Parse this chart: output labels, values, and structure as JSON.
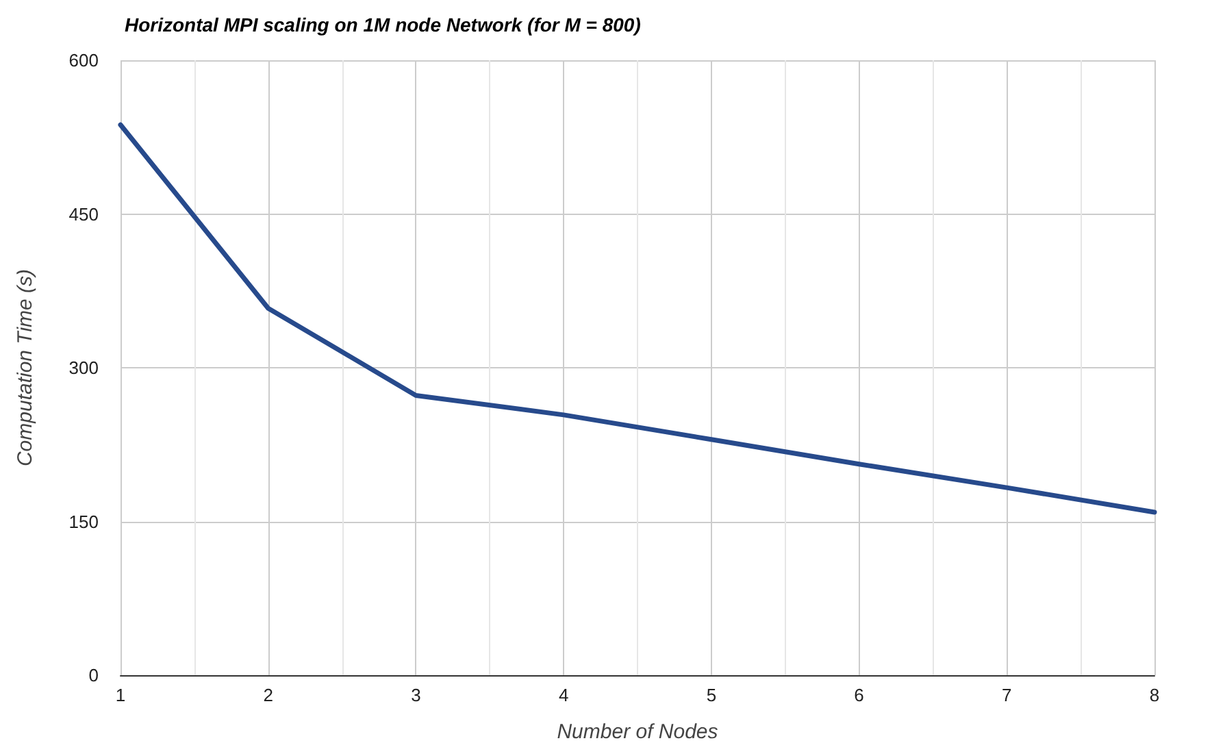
{
  "chart_data": {
    "type": "line",
    "title": "Horizontal MPI scaling on 1M node Network (for M = 800)",
    "xlabel": "Number of Nodes",
    "ylabel": "Computation Time (s)",
    "x": [
      1,
      2,
      3,
      4,
      5,
      6,
      7,
      8
    ],
    "series": [
      {
        "color": "#274a8c",
        "values": [
          537,
          358,
          273,
          254,
          230,
          206,
          183,
          159
        ]
      }
    ],
    "xlim": [
      1,
      8
    ],
    "xticks": [
      1,
      2,
      3,
      4,
      5,
      6,
      7,
      8
    ],
    "ylim": [
      0,
      600
    ],
    "yticks": [
      0,
      150,
      300,
      450,
      600
    ],
    "grid": true,
    "marker": "none",
    "line_style": "solid"
  }
}
